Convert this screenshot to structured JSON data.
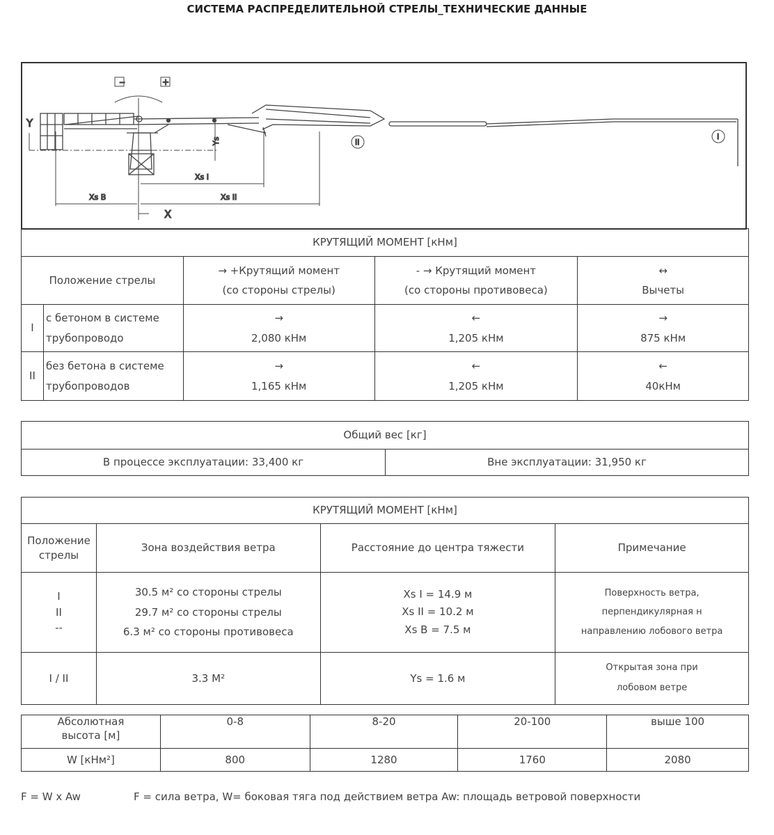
{
  "title": "СИСТЕМА РАСПРЕДЕЛИТЕЛЬНОЙ СТРЕЛЫ_ТЕХНИЧЕСКИЕ ДАННЫЕ",
  "diagram": {
    "minus": "−",
    "plus": "+",
    "ys": "Ys",
    "xs1": "Xs I",
    "xsb": "Xs B",
    "xs2": "Xs II",
    "x": "X",
    "y": "Y",
    "pos1": "I",
    "pos2": "II"
  },
  "torque_table": {
    "title": "КРУТЯЩИЙ МОМЕНТ [кНм]",
    "headers": [
      "Положение стрелы",
      "→  +Крутящий момент",
      "(со стороны стрелы)",
      "- → Крутящий момент",
      "(со стороны противовеса)",
      "↔",
      "Вычеты"
    ],
    "rows": [
      {
        "num": "I",
        "label1": "с бетоном в системе",
        "label2": "трубопроводо",
        "a1": "→",
        "v1": "2,080 кНм",
        "a2": "←",
        "v2": "1,205 кНм",
        "a3": "→",
        "v3": "875 кНм"
      },
      {
        "num": "II",
        "label1": "без бетона в системе",
        "label2": "трубопроводов",
        "a1": "→",
        "v1": "1,165 кНм",
        "a2": "←",
        "v2": "1,205 кНм",
        "a3": "←",
        "v3": "40кНм"
      }
    ]
  },
  "weight_table": {
    "title": "Общий вес [кг]",
    "operating": "В процессе эксплуатации: 33,400 кг",
    "non_operating": "Вне эксплуатации: 31,950 кг"
  },
  "wind_table": {
    "title": "КРУТЯЩИЙ МОМЕНТ [кНм]",
    "headers": [
      "Положение стрелы",
      "Зона воздействия ветра",
      "Расстояние до центра тяжести",
      "Примечание"
    ],
    "row1": {
      "pos": [
        "I",
        "II",
        "--"
      ],
      "zone": [
        "30.5 м² со стороны стрелы",
        "29.7 м² со стороны стрелы",
        "6.3 м² со стороны противовеса"
      ],
      "dist": [
        "Xs I  =  14.9 м",
        "Xs II  =  10.2 м",
        "Xs B  =  7.5 м"
      ],
      "note": [
        "Поверхность ветра,",
        "перпендикулярная н",
        "направлению лобового ветра"
      ]
    },
    "row2": {
      "pos": "I / II",
      "zone": "3.3 М²",
      "dist": "Ys  =  1.6 м",
      "note": [
        "Открытая зона при",
        "лобовом ветре"
      ]
    }
  },
  "pressure_table": {
    "row1_label": [
      "Абсолютная",
      "высота [м]"
    ],
    "ranges": [
      "0-8",
      "8-20",
      "20-100",
      "выше 100"
    ],
    "row2_label": "W [кНм²]",
    "values": [
      "800",
      "1280",
      "1760",
      "2080"
    ]
  },
  "formula": {
    "left": "F = W x Aw",
    "right": "F = сила ветра,   W= боковая тяга под действием ветра Aw: площадь ветровой поверхности"
  }
}
